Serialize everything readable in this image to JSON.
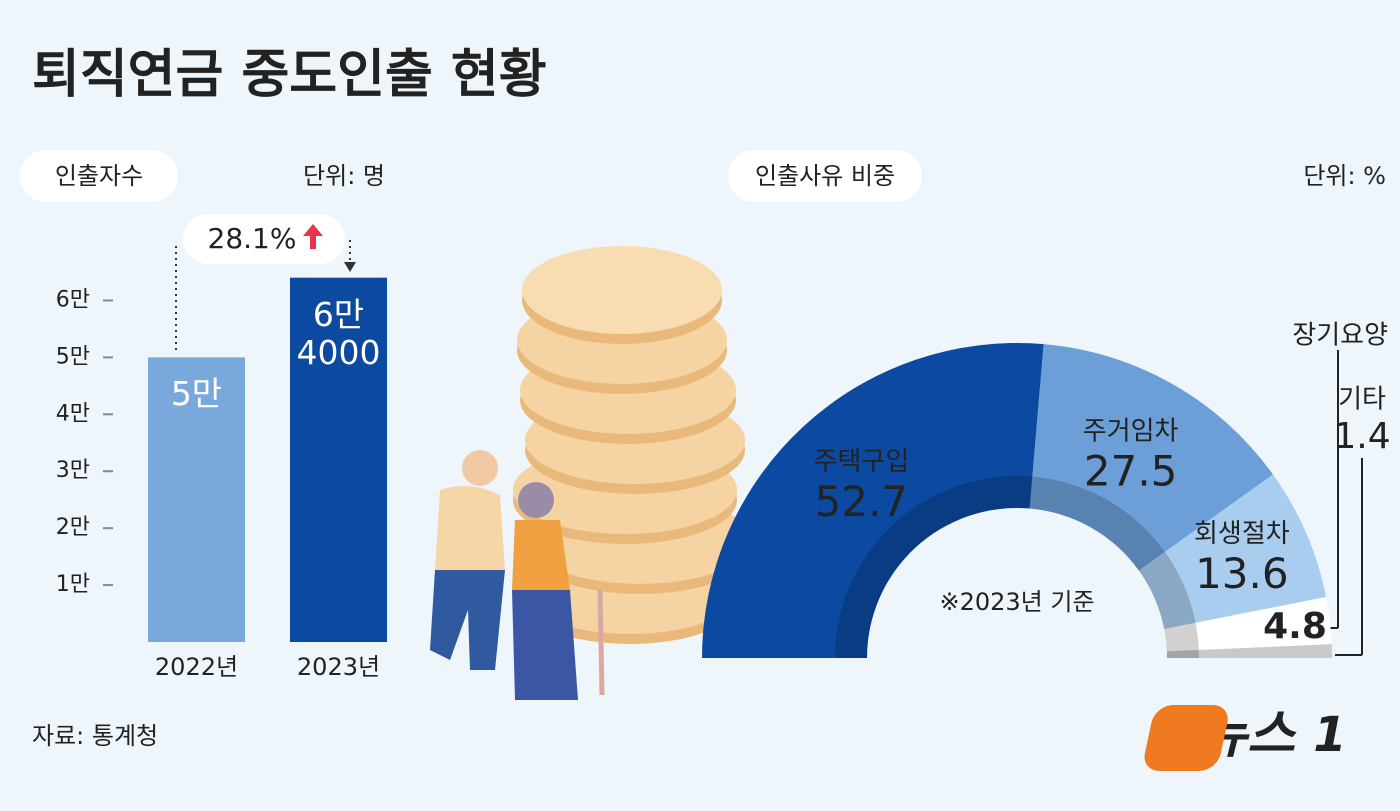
{
  "title": "퇴직연금 중도인출 현황",
  "source": "자료: 통계청",
  "logo": {
    "text": "뉴스",
    "mark": "1"
  },
  "chart_data": [
    {
      "type": "bar",
      "label": "인출자수",
      "unit": "단위: 명",
      "categories": [
        "2022년",
        "2023년"
      ],
      "values": [
        50000,
        64000
      ],
      "value_labels": [
        "5만",
        "6만 4000"
      ],
      "colors": [
        "#78a8dc",
        "#0b4aa0"
      ],
      "ylim": [
        0,
        65000
      ],
      "yticks": [
        {
          "value": 10000,
          "label": "1만"
        },
        {
          "value": 20000,
          "label": "2만"
        },
        {
          "value": 30000,
          "label": "3만"
        },
        {
          "value": 40000,
          "label": "4만"
        },
        {
          "value": 50000,
          "label": "5만"
        },
        {
          "value": 60000,
          "label": "6만"
        }
      ],
      "annotation": "28.1%"
    },
    {
      "type": "donut",
      "label": "인출사유 비중",
      "unit": "단위: %",
      "note": "※2023년 기준",
      "categories": [
        "주택구입",
        "주거임차",
        "회생절차",
        "장기요양",
        "기타"
      ],
      "values": [
        52.7,
        27.5,
        13.6,
        4.8,
        1.4
      ],
      "colors": [
        "#0b4aa0",
        "#6c9fd7",
        "#a9cdef",
        "#ffffff",
        "#c9c9c9"
      ]
    }
  ]
}
